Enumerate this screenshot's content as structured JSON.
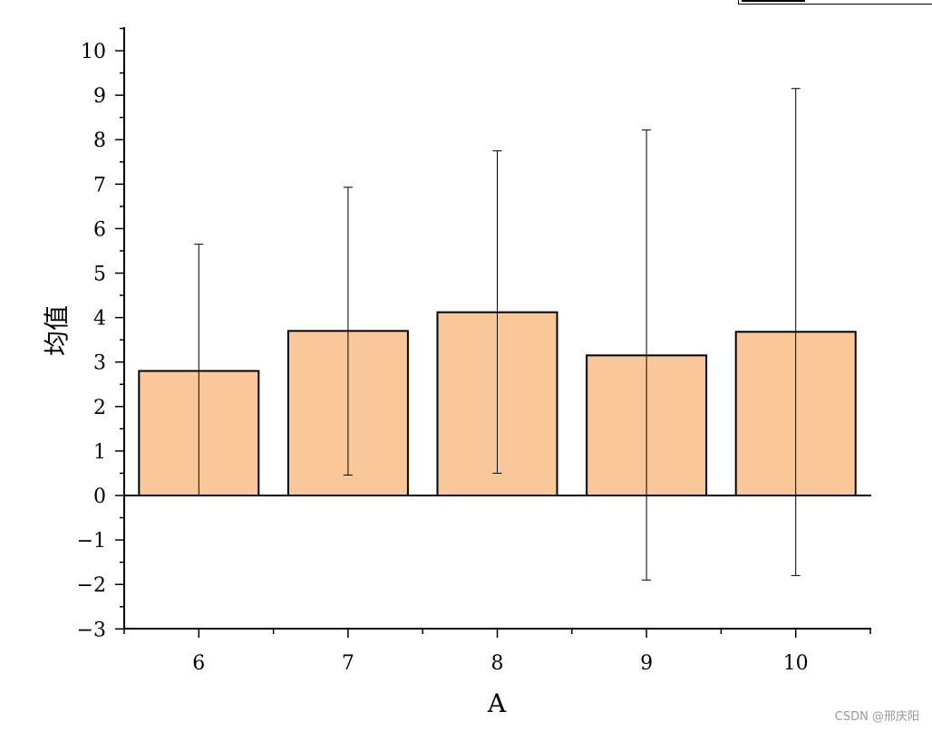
{
  "chart_data": {
    "type": "bar",
    "xlabel": "A",
    "ylabel": "均值",
    "categories": [
      "6",
      "7",
      "8",
      "9",
      "10"
    ],
    "values": [
      2.8,
      3.7,
      4.12,
      3.15,
      3.68
    ],
    "error_upper": [
      5.65,
      6.93,
      7.75,
      8.22,
      9.15
    ],
    "error_lower": [
      0,
      0.46,
      0.5,
      -1.9,
      -1.8
    ],
    "ylim": [
      -3,
      10.5
    ],
    "yticks": [
      "−3",
      "−2",
      "−1",
      "0",
      "1",
      "2",
      "3",
      "4",
      "5",
      "6",
      "7",
      "8",
      "9",
      "10"
    ],
    "bar_color": "#fac898",
    "edge_color": "#000000"
  },
  "watermark": "CSDN @邢庆阳"
}
